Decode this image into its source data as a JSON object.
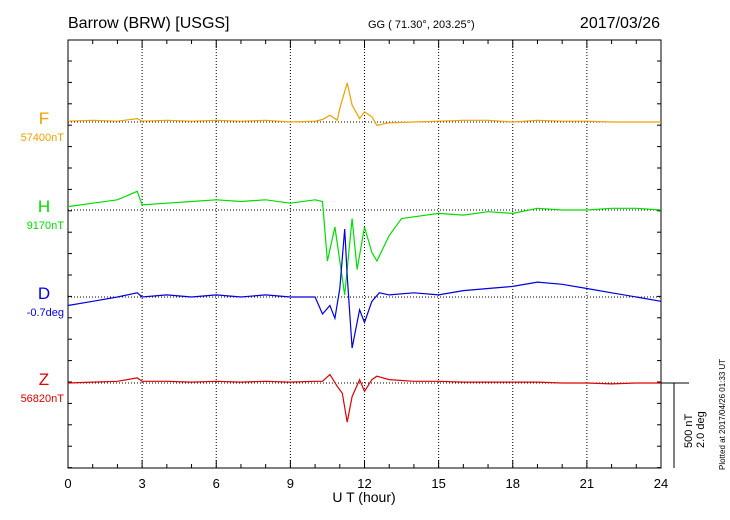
{
  "header": {
    "station": "Barrow (BRW)  [USGS]",
    "coords": "GG ( 71.30°, 203.25°)",
    "date": "2017/03/26"
  },
  "plot": {
    "xlabel": "U T (hour)",
    "xlim": [
      0,
      24
    ],
    "xticks": [
      "0",
      "3",
      "6",
      "9",
      "12",
      "15",
      "18",
      "21",
      "24"
    ],
    "scale_nt": "500 nT",
    "scale_deg": "2.0 deg",
    "plotted_note": "Plotted at 2017/04/26 01:33 UT"
  },
  "chart_data": {
    "type": "line",
    "xlabel": "U T (hour)",
    "xlim": [
      0,
      24
    ],
    "grid": "vertical dotted at 3-hour steps, dotted baseline per trace",
    "series": [
      {
        "name": "F",
        "baseline": "57400nT",
        "color": "#f0a000",
        "unit": "nT",
        "x": [
          0,
          1,
          2,
          2.8,
          3,
          4,
          5,
          6,
          7,
          8,
          9,
          10,
          10.3,
          10.6,
          10.9,
          11.0,
          11.3,
          11.5,
          11.8,
          12.0,
          12.3,
          12.5,
          12.8,
          13,
          14,
          15,
          16,
          17,
          18,
          19,
          20,
          21,
          22,
          23,
          24
        ],
        "values": [
          5,
          10,
          5,
          20,
          5,
          10,
          5,
          10,
          5,
          10,
          0,
          5,
          15,
          40,
          10,
          80,
          230,
          100,
          20,
          60,
          30,
          -20,
          -10,
          -5,
          0,
          5,
          10,
          10,
          0,
          10,
          5,
          5,
          0,
          0,
          0
        ]
      },
      {
        "name": "H",
        "baseline": "9170nT",
        "color": "#00dd00",
        "unit": "nT",
        "x": [
          0,
          1,
          2,
          2.8,
          3,
          4,
          5,
          6,
          7,
          8,
          9,
          10,
          10.3,
          10.5,
          10.8,
          11.0,
          11.2,
          11.5,
          11.7,
          12.0,
          12.3,
          12.5,
          13,
          13.5,
          14,
          15,
          16,
          17,
          18,
          19,
          20,
          21,
          22,
          23,
          24
        ],
        "values": [
          20,
          40,
          60,
          110,
          30,
          40,
          50,
          60,
          50,
          60,
          40,
          60,
          50,
          -300,
          -100,
          -300,
          -500,
          -50,
          -350,
          -100,
          -250,
          -300,
          -150,
          -50,
          -40,
          -20,
          -30,
          -10,
          -20,
          10,
          0,
          0,
          10,
          10,
          0
        ]
      },
      {
        "name": "D",
        "baseline": "-0.7deg",
        "color": "#0000dd",
        "unit": "deg",
        "x": [
          0,
          1,
          2,
          2.8,
          3,
          4,
          5,
          6,
          7,
          8,
          9,
          10,
          10.3,
          10.6,
          10.8,
          11.0,
          11.2,
          11.3,
          11.5,
          11.8,
          12.0,
          12.3,
          12.6,
          13,
          14,
          15,
          16,
          17,
          18,
          19,
          20,
          21,
          22,
          23,
          24
        ],
        "values": [
          -0.2,
          -0.1,
          0,
          0.1,
          0,
          0.05,
          0,
          0.05,
          0,
          0.05,
          0,
          0,
          -0.4,
          -0.2,
          -0.5,
          0.2,
          1.6,
          0.5,
          -1.2,
          -0.3,
          -0.6,
          -0.1,
          0.1,
          0.05,
          0.1,
          0.05,
          0.15,
          0.2,
          0.25,
          0.35,
          0.3,
          0.2,
          0.1,
          0,
          -0.1
        ]
      },
      {
        "name": "Z",
        "baseline": "56820nT",
        "color": "#dd0000",
        "unit": "nT",
        "x": [
          0,
          1,
          2,
          2.8,
          3,
          4,
          5,
          6,
          7,
          8,
          9,
          10,
          10.3,
          10.6,
          10.9,
          11.1,
          11.3,
          11.5,
          11.8,
          12.0,
          12.3,
          12.5,
          13,
          14,
          15,
          16,
          17,
          18,
          19,
          20,
          21,
          22,
          23,
          24
        ],
        "values": [
          0,
          5,
          10,
          30,
          10,
          10,
          5,
          10,
          5,
          10,
          5,
          10,
          10,
          50,
          -20,
          -60,
          -230,
          -80,
          20,
          -50,
          20,
          40,
          20,
          10,
          10,
          5,
          5,
          5,
          5,
          0,
          0,
          -5,
          0,
          0
        ]
      }
    ]
  }
}
